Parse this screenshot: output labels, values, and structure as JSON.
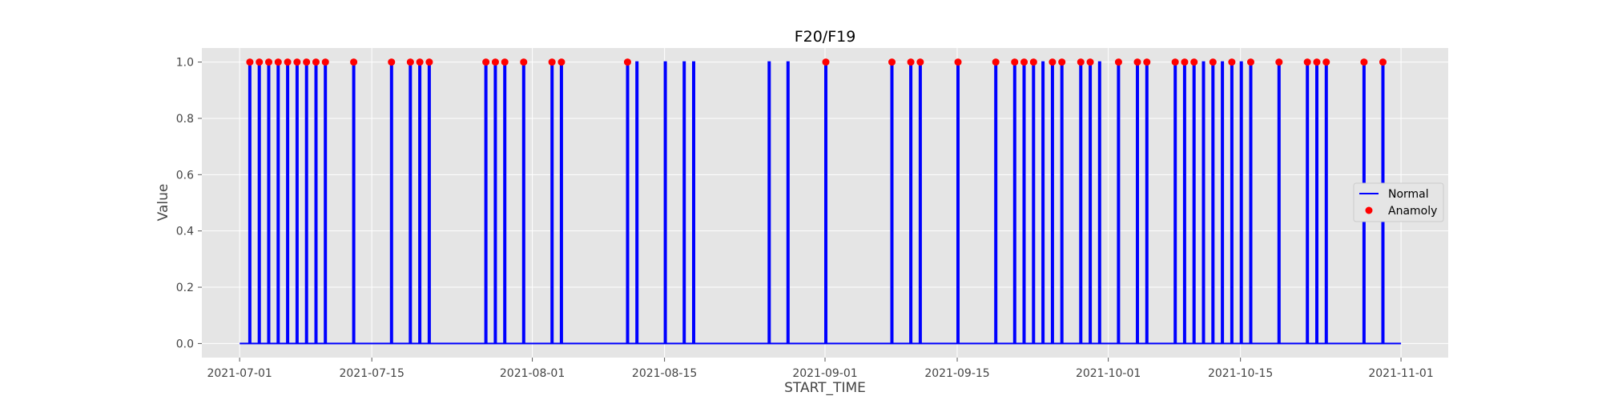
{
  "chart_data": {
    "type": "line",
    "title": "F20/F19",
    "xlabel": "START_TIME",
    "ylabel": "Value",
    "xlim": [
      "2021-06-27",
      "2021-11-06"
    ],
    "ylim": [
      -0.05,
      1.05
    ],
    "x_ticks": [
      "2021-07-01",
      "2021-07-15",
      "2021-08-01",
      "2021-08-15",
      "2021-09-01",
      "2021-09-15",
      "2021-10-01",
      "2021-10-15",
      "2021-11-01"
    ],
    "y_ticks": [
      0.0,
      0.2,
      0.4,
      0.6,
      0.8,
      1.0
    ],
    "y_tick_labels": [
      "0.0",
      "0.2",
      "0.4",
      "0.6",
      "0.8",
      "1.0"
    ],
    "x_range": [
      "2021-07-01",
      "2021-11-01"
    ],
    "grid": true,
    "legend_position": "right",
    "colors": {
      "normal": "#0000ff",
      "anomaly": "#ff0000",
      "plot_background": "#e5e5e5",
      "grid": "#ffffff"
    },
    "series": [
      {
        "name": "Normal",
        "kind": "line",
        "spike_dates": [
          "2021-07-02",
          "2021-07-03",
          "2021-07-03",
          "2021-07-04",
          "2021-07-05",
          "2021-07-06",
          "2021-07-07",
          "2021-07-07",
          "2021-07-08",
          "2021-07-09",
          "2021-07-10",
          "2021-07-13",
          "2021-07-17",
          "2021-07-19",
          "2021-07-20",
          "2021-07-21",
          "2021-07-27",
          "2021-07-28",
          "2021-07-29",
          "2021-07-31",
          "2021-08-03",
          "2021-08-04",
          "2021-08-11",
          "2021-08-12",
          "2021-08-15",
          "2021-08-17",
          "2021-08-17",
          "2021-08-18",
          "2021-08-26",
          "2021-08-26",
          "2021-08-28",
          "2021-09-01",
          "2021-09-08",
          "2021-09-10",
          "2021-09-11",
          "2021-09-15",
          "2021-09-19",
          "2021-09-21",
          "2021-09-22",
          "2021-09-23",
          "2021-09-23",
          "2021-09-24",
          "2021-09-25",
          "2021-09-26",
          "2021-09-28",
          "2021-09-29",
          "2021-09-30",
          "2021-10-02",
          "2021-10-04",
          "2021-10-05",
          "2021-10-08",
          "2021-10-09",
          "2021-10-10",
          "2021-10-11",
          "2021-10-12",
          "2021-10-13",
          "2021-10-14",
          "2021-10-14",
          "2021-10-15",
          "2021-10-16",
          "2021-10-19",
          "2021-10-22",
          "2021-10-23",
          "2021-10-24",
          "2021-10-28",
          "2021-10-30",
          "2021-10-30"
        ]
      },
      {
        "name": "Anamoly",
        "kind": "scatter",
        "y": 1.0,
        "dates": [
          "2021-07-02",
          "2021-07-03",
          "2021-07-04",
          "2021-07-05",
          "2021-07-06",
          "2021-07-07",
          "2021-07-08",
          "2021-07-09",
          "2021-07-10",
          "2021-07-13",
          "2021-07-17",
          "2021-07-19",
          "2021-07-20",
          "2021-07-21",
          "2021-07-27",
          "2021-07-28",
          "2021-07-29",
          "2021-07-31",
          "2021-08-03",
          "2021-08-04",
          "2021-08-11",
          "2021-09-01",
          "2021-09-08",
          "2021-09-10",
          "2021-09-11",
          "2021-09-15",
          "2021-09-19",
          "2021-09-21",
          "2021-09-22",
          "2021-09-23",
          "2021-09-25",
          "2021-09-26",
          "2021-09-28",
          "2021-09-29",
          "2021-10-02",
          "2021-10-04",
          "2021-10-05",
          "2021-10-08",
          "2021-10-09",
          "2021-10-10",
          "2021-10-12",
          "2021-10-14",
          "2021-10-16",
          "2021-10-19",
          "2021-10-22",
          "2021-10-23",
          "2021-10-24",
          "2021-10-28",
          "2021-10-30"
        ]
      }
    ]
  }
}
